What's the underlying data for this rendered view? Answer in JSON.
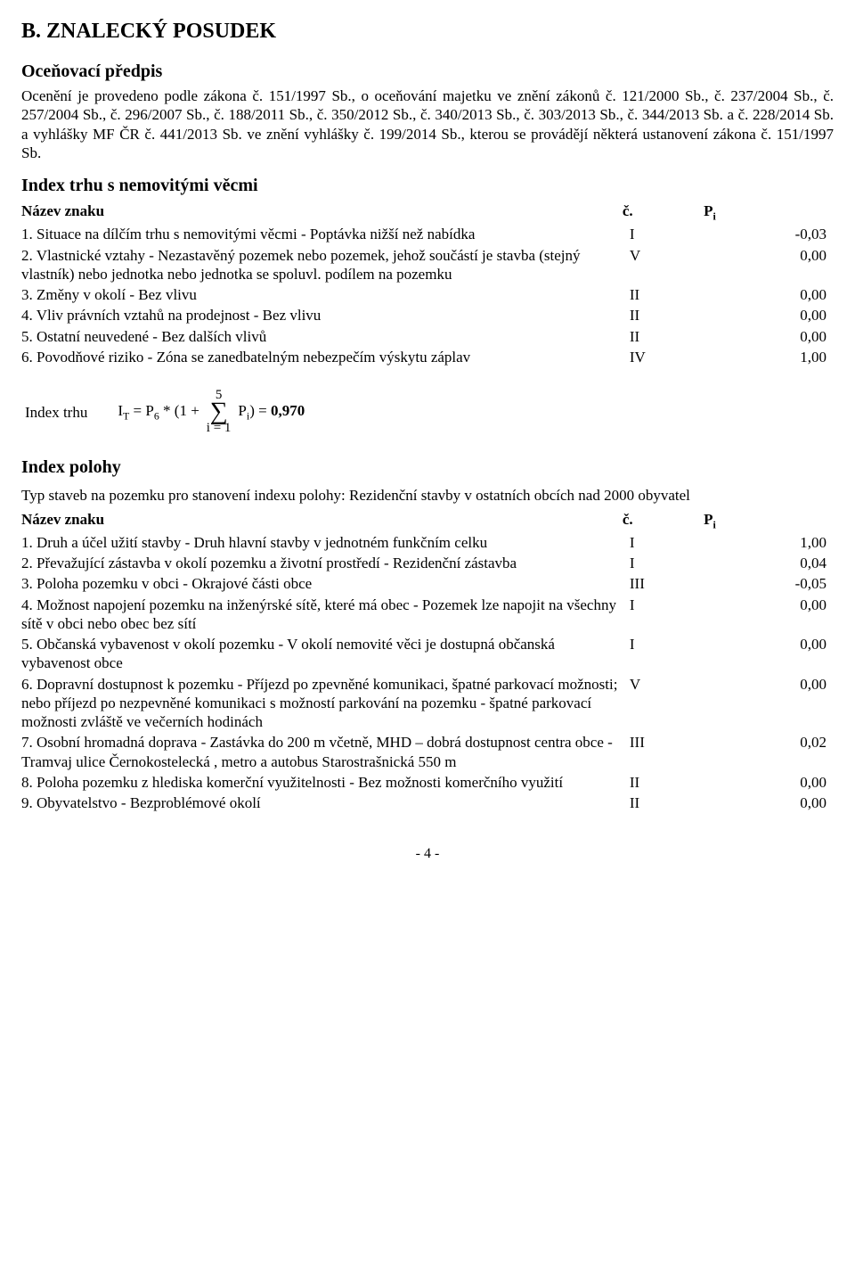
{
  "heading": "B. ZNALECKÝ POSUDEK",
  "ocen_predpis_title": "Oceňovací předpis",
  "ocen_predpis_text": "Ocenění je provedeno podle zákona č. 151/1997 Sb., o oceňování majetku ve znění zákonů č. 121/2000 Sb., č. 237/2004 Sb., č. 257/2004 Sb., č. 296/2007 Sb., č. 188/2011 Sb., č. 350/2012 Sb., č. 340/2013 Sb., č. 303/2013 Sb., č. 344/2013 Sb. a č. 228/2014 Sb. a vyhlášky MF ČR č. 441/2013 Sb. ve znění vyhlášky č. 199/2014 Sb., kterou se provádějí některá ustanovení zákona č. 151/1997 Sb.",
  "index_trhu_title": "Index trhu s nemovitými věcmi",
  "header_nazev": "Název znaku",
  "header_c": "č.",
  "header_pi": "P",
  "header_pi_sub": "i",
  "trhu_rows": [
    {
      "n": "1. Situace na dílčím trhu s nemovitými věcmi - Poptávka nižší než nabídka",
      "c": "I",
      "p": "-0,03"
    },
    {
      "n": "2. Vlastnické vztahy - Nezastavěný pozemek nebo pozemek, jehož součástí je stavba (stejný vlastník) nebo jednotka nebo jednotka se spoluvl. podílem na pozemku",
      "c": "V",
      "p": "0,00"
    },
    {
      "n": "3. Změny v okolí - Bez vlivu",
      "c": "II",
      "p": "0,00"
    },
    {
      "n": "4. Vliv právních vztahů na prodejnost - Bez vlivu",
      "c": "II",
      "p": "0,00"
    },
    {
      "n": "5. Ostatní neuvedené - Bez dalších vlivů",
      "c": "II",
      "p": "0,00"
    },
    {
      "n": "6. Povodňové riziko - Zóna se zanedbatelným nebezpečím výskytu záplav",
      "c": "IV",
      "p": "1,00"
    }
  ],
  "formula_label": "Index trhu",
  "formula_lhs_pre": "I",
  "formula_lhs_sub": "T",
  "formula_lhs_post": " = P",
  "formula_lhs_sub2": "6",
  "formula_lhs_tail": " * (1 + ",
  "formula_sum_top": "5",
  "formula_sum_bottom": "i = 1",
  "formula_sum_var_pre": " P",
  "formula_sum_var_sub": "i",
  "formula_rhs": ") = ",
  "formula_result": "0,970",
  "index_polohy_title": "Index polohy",
  "typ_staveb_text": "Typ staveb na pozemku pro stanovení indexu polohy: Rezidenční stavby v ostatních obcích nad 2000 obyvatel",
  "polohy_rows": [
    {
      "n": "1. Druh a účel užití stavby - Druh hlavní stavby v jednotném funkčním celku",
      "c": "I",
      "p": "1,00"
    },
    {
      "n": "2. Převažující zástavba v okolí pozemku a životní prostředí - Rezidenční zástavba",
      "c": "I",
      "p": "0,04"
    },
    {
      "n": "3. Poloha pozemku v obci - Okrajové části obce",
      "c": "III",
      "p": "-0,05"
    },
    {
      "n": "4. Možnost napojení pozemku na inženýrské sítě, které má obec - Pozemek lze napojit na všechny sítě v obci nebo obec bez sítí",
      "c": "I",
      "p": "0,00"
    },
    {
      "n": "5. Občanská vybavenost v okolí pozemku - V okolí nemovité věci je dostupná občanská vybavenost obce",
      "c": "I",
      "p": "0,00"
    },
    {
      "n": "6. Dopravní dostupnost k pozemku - Příjezd po zpevněné komunikaci, špatné parkovací možnosti; nebo příjezd po nezpevněné komunikaci s možností parkování na pozemku - špatné parkovací možnosti zvláště ve večerních hodinách",
      "c": "V",
      "p": "0,00"
    },
    {
      "n": "7. Osobní hromadná doprava - Zastávka do 200 m včetně, MHD – dobrá dostupnost centra obce - Tramvaj ulice Černokostelecká , metro a autobus Starostrašnická 550 m",
      "c": "III",
      "p": "0,02"
    },
    {
      "n": "8. Poloha pozemku z hlediska komerční využitelnosti - Bez možnosti komerčního využití",
      "c": "II",
      "p": "0,00"
    },
    {
      "n": "9. Obyvatelstvo - Bezproblémové okolí",
      "c": "II",
      "p": "0,00"
    }
  ],
  "footer": "- 4 -"
}
